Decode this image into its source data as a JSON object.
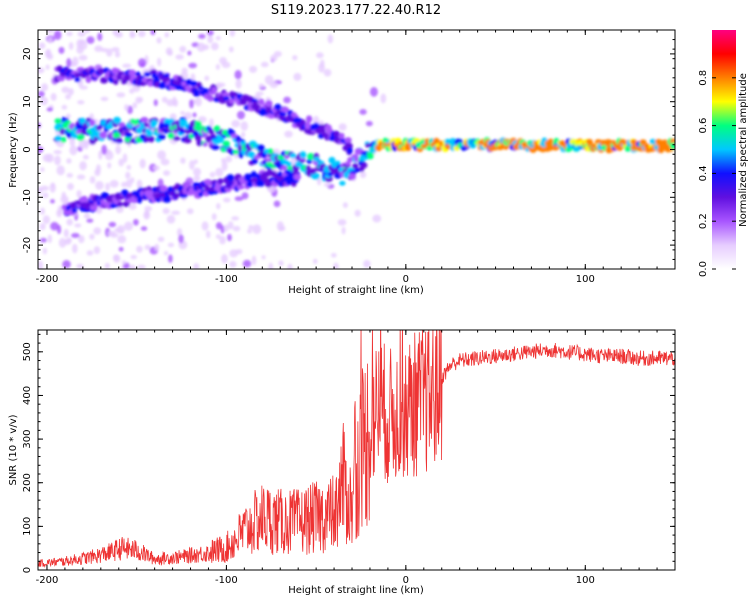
{
  "figure": {
    "title": "S119.2023.177.22.40.R12"
  },
  "colors": {
    "snr_line": "#ee3333",
    "colormap": [
      "#ffffff",
      "#e6ccff",
      "#a855ff",
      "#6010e0",
      "#1010ff",
      "#00c8ff",
      "#00ff80",
      "#ffff00",
      "#ff8000",
      "#ff0000",
      "#ff0080"
    ]
  },
  "chart_data": [
    {
      "type": "heatmap",
      "xlabel": "Height of straight line (km)",
      "ylabel": "Frequency (Hz)",
      "xlim": [
        -205,
        150
      ],
      "ylim": [
        -25,
        25
      ],
      "xticks": [
        -200,
        -100,
        0,
        100
      ],
      "xtick_labels": [
        "-200",
        "-100",
        "0",
        "100"
      ],
      "yticks": [
        -20,
        -10,
        0,
        10,
        20
      ],
      "ytick_labels": [
        "-20",
        "-10",
        "0",
        "10",
        "20"
      ],
      "colorbar": {
        "label": "Normalized spectral amplitude",
        "range": [
          0,
          1
        ],
        "ticks": [
          0.0,
          0.2,
          0.4,
          0.6,
          0.8
        ],
        "tick_labels": [
          "0.0",
          "0.2",
          "0.4",
          "0.6",
          "0.8"
        ]
      },
      "features": [
        {
          "name": "main-band",
          "x": [
            -195,
            -150,
            -120,
            -100,
            -80,
            -60,
            -45,
            -35,
            -25,
            -15,
            0,
            50,
            100,
            150
          ],
          "y": [
            4,
            4,
            4,
            2,
            -2,
            -3,
            -4,
            -5,
            -2,
            1,
            1,
            1,
            0.8,
            0.8
          ]
        },
        {
          "name": "upper-band",
          "x": [
            -195,
            -140,
            -110,
            -80,
            -60,
            -40,
            -30
          ],
          "y": [
            16,
            15,
            12,
            9,
            6,
            3,
            0
          ]
        },
        {
          "name": "lower-band",
          "x": [
            -190,
            -150,
            -110,
            -80,
            -60
          ],
          "y": [
            -12,
            -10,
            -8,
            -6,
            -6
          ]
        }
      ]
    },
    {
      "type": "line",
      "xlabel": "Height of straight line (km)",
      "ylabel": "SNR (10 * v/v)",
      "xlim": [
        -205,
        150
      ],
      "ylim": [
        0,
        550
      ],
      "xticks": [
        -200,
        -100,
        0,
        100
      ],
      "xtick_labels": [
        "-200",
        "-100",
        "0",
        "100"
      ],
      "yticks": [
        0,
        100,
        200,
        300,
        400,
        500
      ],
      "ytick_labels": [
        "0",
        "100",
        "200",
        "300",
        "400",
        "500"
      ],
      "series": [
        {
          "x": [
            -205,
            -190,
            -175,
            -165,
            -158,
            -150,
            -140,
            -125,
            -110,
            -100,
            -90,
            -80,
            -70,
            -60,
            -50,
            -40,
            -35,
            -30,
            -25,
            -20,
            -15,
            -10,
            -5,
            0,
            5,
            10,
            15,
            20,
            25,
            30,
            40,
            50,
            60,
            70,
            80,
            90,
            100,
            110,
            120,
            130,
            140,
            150
          ],
          "y": [
            15,
            20,
            30,
            40,
            50,
            45,
            25,
            30,
            40,
            50,
            90,
            120,
            110,
            110,
            120,
            130,
            200,
            140,
            280,
            320,
            380,
            350,
            360,
            370,
            380,
            390,
            400,
            440,
            470,
            480,
            485,
            490,
            495,
            500,
            505,
            500,
            495,
            490,
            490,
            485,
            485,
            485
          ]
        }
      ]
    }
  ]
}
